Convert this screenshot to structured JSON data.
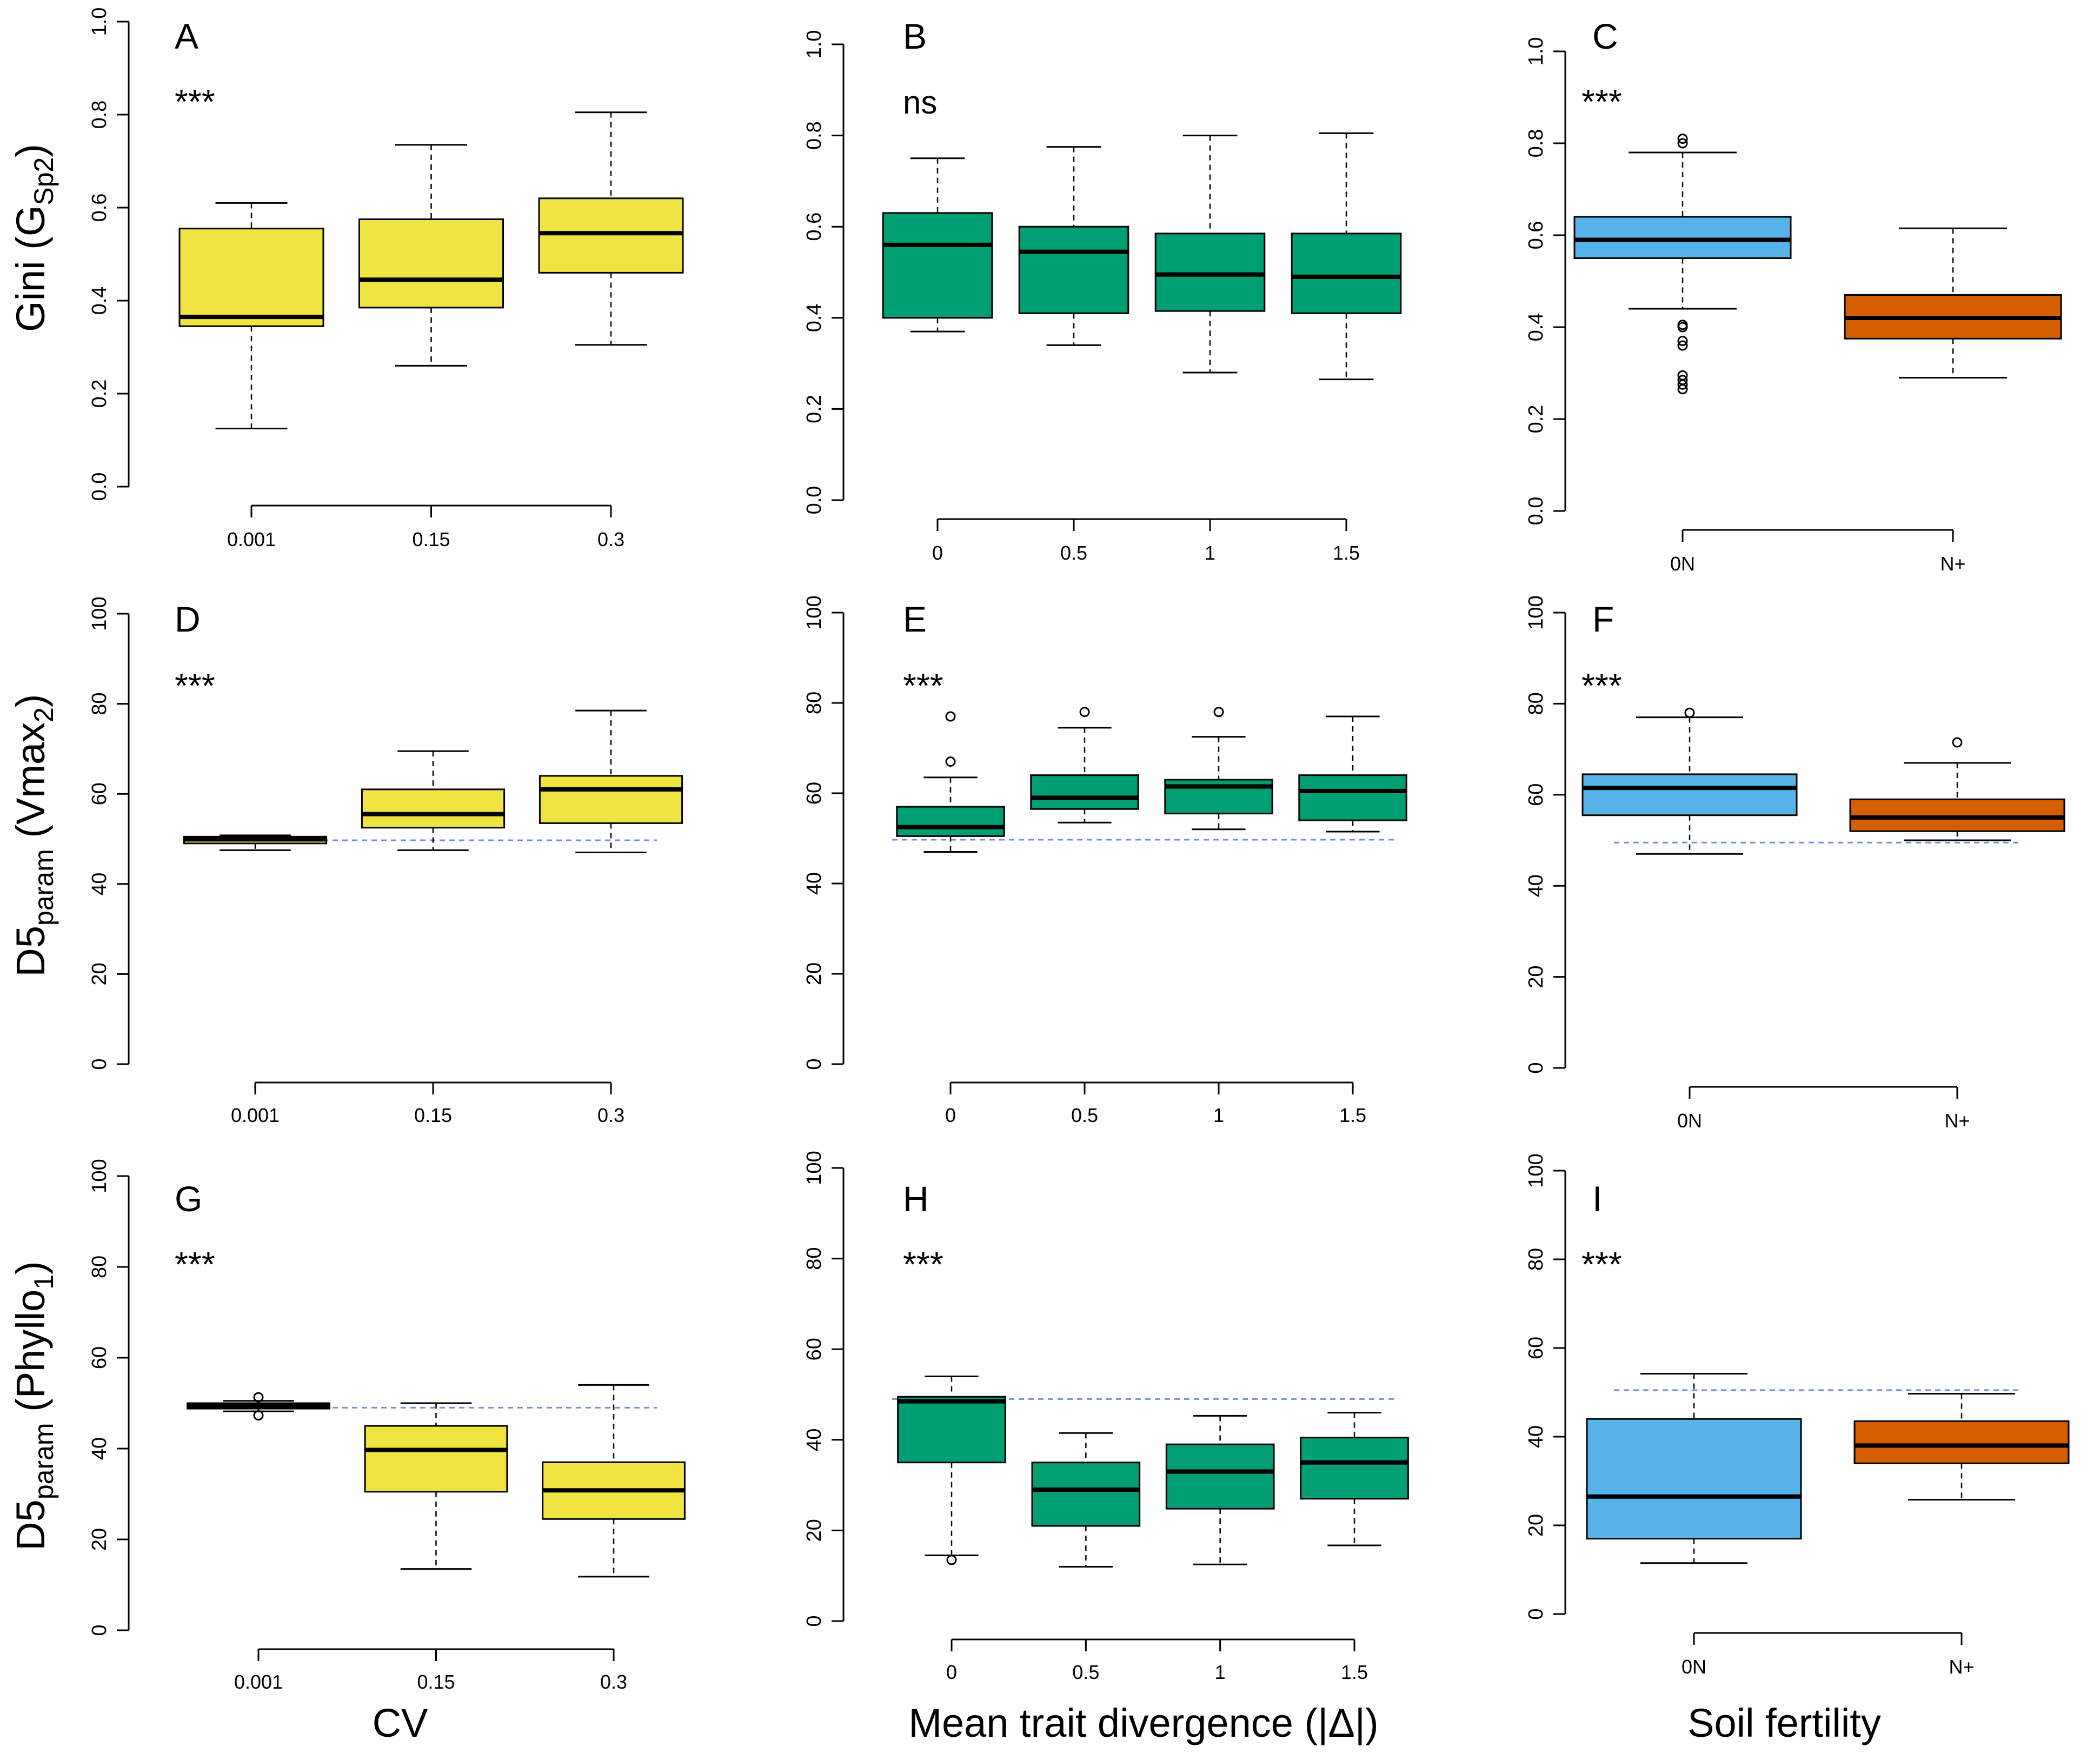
{
  "figure": {
    "row_ylabels": [
      {
        "main": "Gini (G",
        "sub": "Sp2",
        "end": ")"
      },
      {
        "main": "D5",
        "sub": "param",
        "end": " (Vmax",
        "sub2": "2",
        "end2": ")"
      },
      {
        "main": "D5",
        "sub": "param",
        "end": " (Phyllo",
        "sub2": "1",
        "end2": ")"
      }
    ],
    "col_xlabels": [
      "CV",
      "Mean trait divergence (|Δ|)",
      "Soil fertility"
    ],
    "colors": {
      "yellow": "#F0E442",
      "green": "#009E73",
      "blue": "#56B4E9",
      "orange": "#D55E00",
      "reference_line": "#6F8FD8"
    }
  },
  "chart_data": [
    {
      "type": "boxplot",
      "panel": "A",
      "significance": "***",
      "ylim": [
        0,
        1
      ],
      "yticks": [
        "0.0",
        "0.2",
        "0.4",
        "0.6",
        "0.8",
        "1.0"
      ],
      "categories": [
        "0.001",
        "0.15",
        "0.3"
      ],
      "fill": [
        "#F0E442",
        "#F0E442",
        "#F0E442"
      ],
      "reference_line": null,
      "boxes": [
        {
          "whisker_low": 0.125,
          "q1": 0.345,
          "median": 0.365,
          "q3": 0.555,
          "whisker_high": 0.61,
          "outliers": []
        },
        {
          "whisker_low": 0.26,
          "q1": 0.385,
          "median": 0.445,
          "q3": 0.575,
          "whisker_high": 0.735,
          "outliers": []
        },
        {
          "whisker_low": 0.305,
          "q1": 0.46,
          "median": 0.545,
          "q3": 0.62,
          "whisker_high": 0.805,
          "outliers": []
        }
      ]
    },
    {
      "type": "boxplot",
      "panel": "B",
      "significance": "ns",
      "ylim": [
        0,
        1
      ],
      "yticks": [
        "0.0",
        "0.2",
        "0.4",
        "0.6",
        "0.8",
        "1.0"
      ],
      "categories": [
        "0",
        "0.5",
        "1",
        "1.5"
      ],
      "fill": [
        "#009E73",
        "#009E73",
        "#009E73",
        "#009E73"
      ],
      "reference_line": null,
      "boxes": [
        {
          "whisker_low": 0.37,
          "q1": 0.4,
          "median": 0.56,
          "q3": 0.63,
          "whisker_high": 0.75,
          "outliers": []
        },
        {
          "whisker_low": 0.34,
          "q1": 0.41,
          "median": 0.545,
          "q3": 0.6,
          "whisker_high": 0.775,
          "outliers": []
        },
        {
          "whisker_low": 0.28,
          "q1": 0.415,
          "median": 0.495,
          "q3": 0.585,
          "whisker_high": 0.8,
          "outliers": []
        },
        {
          "whisker_low": 0.265,
          "q1": 0.41,
          "median": 0.49,
          "q3": 0.585,
          "whisker_high": 0.805,
          "outliers": []
        }
      ]
    },
    {
      "type": "boxplot",
      "panel": "C",
      "significance": "***",
      "ylim": [
        0,
        1
      ],
      "yticks": [
        "0.0",
        "0.2",
        "0.4",
        "0.6",
        "0.8",
        "1.0"
      ],
      "categories": [
        "0N",
        "N+"
      ],
      "fill": [
        "#56B4E9",
        "#D55E00"
      ],
      "reference_line": null,
      "boxes": [
        {
          "whisker_low": 0.44,
          "q1": 0.55,
          "median": 0.59,
          "q3": 0.64,
          "whisker_high": 0.78,
          "outliers": [
            0.81,
            0.8,
            0.405,
            0.4,
            0.37,
            0.36,
            0.295,
            0.285,
            0.275,
            0.265
          ]
        },
        {
          "whisker_low": 0.29,
          "q1": 0.375,
          "median": 0.42,
          "q3": 0.47,
          "whisker_high": 0.615,
          "outliers": []
        }
      ]
    },
    {
      "type": "boxplot",
      "panel": "D",
      "significance": "***",
      "ylim": [
        0,
        100
      ],
      "yticks": [
        "0",
        "20",
        "40",
        "60",
        "80",
        "100"
      ],
      "categories": [
        "0.001",
        "0.15",
        "0.3"
      ],
      "fill": [
        "#F0E442",
        "#F0E442",
        "#F0E442"
      ],
      "reference_line": 49.7,
      "boxes": [
        {
          "whisker_low": 47.5,
          "q1": 49.0,
          "median": 49.9,
          "q3": 50.5,
          "whisker_high": 50.8,
          "outliers": []
        },
        {
          "whisker_low": 47.5,
          "q1": 52.5,
          "median": 55.5,
          "q3": 61.0,
          "whisker_high": 69.5,
          "outliers": []
        },
        {
          "whisker_low": 47.0,
          "q1": 53.5,
          "median": 61.0,
          "q3": 64.0,
          "whisker_high": 78.5,
          "outliers": []
        }
      ]
    },
    {
      "type": "boxplot",
      "panel": "E",
      "significance": "***",
      "ylim": [
        0,
        100
      ],
      "yticks": [
        "0",
        "20",
        "40",
        "60",
        "80",
        "100"
      ],
      "categories": [
        "0",
        "0.5",
        "1",
        "1.5"
      ],
      "fill": [
        "#009E73",
        "#009E73",
        "#009E73",
        "#009E73"
      ],
      "reference_line": 49.7,
      "boxes": [
        {
          "whisker_low": 47.0,
          "q1": 50.5,
          "median": 52.5,
          "q3": 57.0,
          "whisker_high": 63.5,
          "outliers": [
            67.0,
            77.0
          ]
        },
        {
          "whisker_low": 53.5,
          "q1": 56.5,
          "median": 59.0,
          "q3": 64.0,
          "whisker_high": 74.5,
          "outliers": [
            78.0
          ]
        },
        {
          "whisker_low": 52.0,
          "q1": 55.5,
          "median": 61.5,
          "q3": 63.0,
          "whisker_high": 72.5,
          "outliers": [
            78.0
          ]
        },
        {
          "whisker_low": 51.5,
          "q1": 54.0,
          "median": 60.5,
          "q3": 64.0,
          "whisker_high": 77.0,
          "outliers": []
        }
      ]
    },
    {
      "type": "boxplot",
      "panel": "F",
      "significance": "***",
      "ylim": [
        0,
        100
      ],
      "yticks": [
        "0",
        "20",
        "40",
        "60",
        "80",
        "100"
      ],
      "categories": [
        "0N",
        "N+"
      ],
      "fill": [
        "#56B4E9",
        "#D55E00"
      ],
      "reference_line": 49.5,
      "boxes": [
        {
          "whisker_low": 47.0,
          "q1": 55.5,
          "median": 61.5,
          "q3": 64.5,
          "whisker_high": 77.0,
          "outliers": [
            78.0
          ]
        },
        {
          "whisker_low": 50.0,
          "q1": 52.0,
          "median": 55.0,
          "q3": 59.0,
          "whisker_high": 67.0,
          "outliers": [
            71.5
          ]
        }
      ]
    },
    {
      "type": "boxplot",
      "panel": "G",
      "significance": "***",
      "ylim": [
        0,
        100
      ],
      "yticks": [
        "0",
        "20",
        "40",
        "60",
        "80",
        "100"
      ],
      "categories": [
        "0.001",
        "0.15",
        "0.3"
      ],
      "fill": [
        "#F0E442",
        "#F0E442",
        "#F0E442"
      ],
      "reference_line": 49.0,
      "boxes": [
        {
          "whisker_low": 48.2,
          "q1": 48.8,
          "median": 49.4,
          "q3": 50.0,
          "whisker_high": 50.5,
          "outliers": [
            51.3,
            47.3
          ]
        },
        {
          "whisker_low": 13.5,
          "q1": 30.5,
          "median": 39.7,
          "q3": 45.0,
          "whisker_high": 50.0,
          "outliers": []
        },
        {
          "whisker_low": 11.8,
          "q1": 24.5,
          "median": 30.8,
          "q3": 37.0,
          "whisker_high": 54.0,
          "outliers": []
        }
      ]
    },
    {
      "type": "boxplot",
      "panel": "H",
      "significance": "***",
      "ylim": [
        0,
        100
      ],
      "yticks": [
        "0",
        "20",
        "40",
        "60",
        "80",
        "100"
      ],
      "categories": [
        "0",
        "0.5",
        "1",
        "1.5"
      ],
      "fill": [
        "#009E73",
        "#009E73",
        "#009E73",
        "#009E73"
      ],
      "reference_line": 49.0,
      "boxes": [
        {
          "whisker_low": 14.5,
          "q1": 35.0,
          "median": 48.5,
          "q3": 49.5,
          "whisker_high": 54.0,
          "outliers": [
            13.5
          ]
        },
        {
          "whisker_low": 12.0,
          "q1": 21.0,
          "median": 29.0,
          "q3": 35.0,
          "whisker_high": 41.5,
          "outliers": []
        },
        {
          "whisker_low": 12.5,
          "q1": 24.8,
          "median": 33.0,
          "q3": 39.0,
          "whisker_high": 45.3,
          "outliers": []
        },
        {
          "whisker_low": 16.7,
          "q1": 27.0,
          "median": 35.0,
          "q3": 40.5,
          "whisker_high": 46.0,
          "outliers": []
        }
      ]
    },
    {
      "type": "boxplot",
      "panel": "I",
      "significance": "***",
      "ylim": [
        0,
        100
      ],
      "yticks": [
        "0",
        "20",
        "40",
        "60",
        "80",
        "100"
      ],
      "categories": [
        "0N",
        "N+"
      ],
      "fill": [
        "#56B4E9",
        "#D55E00"
      ],
      "reference_line": 50.5,
      "boxes": [
        {
          "whisker_low": 11.5,
          "q1": 17.0,
          "median": 26.5,
          "q3": 44.0,
          "whisker_high": 54.2,
          "outliers": []
        },
        {
          "whisker_low": 25.8,
          "q1": 34.0,
          "median": 38.0,
          "q3": 43.5,
          "whisker_high": 49.7,
          "outliers": []
        }
      ]
    }
  ]
}
